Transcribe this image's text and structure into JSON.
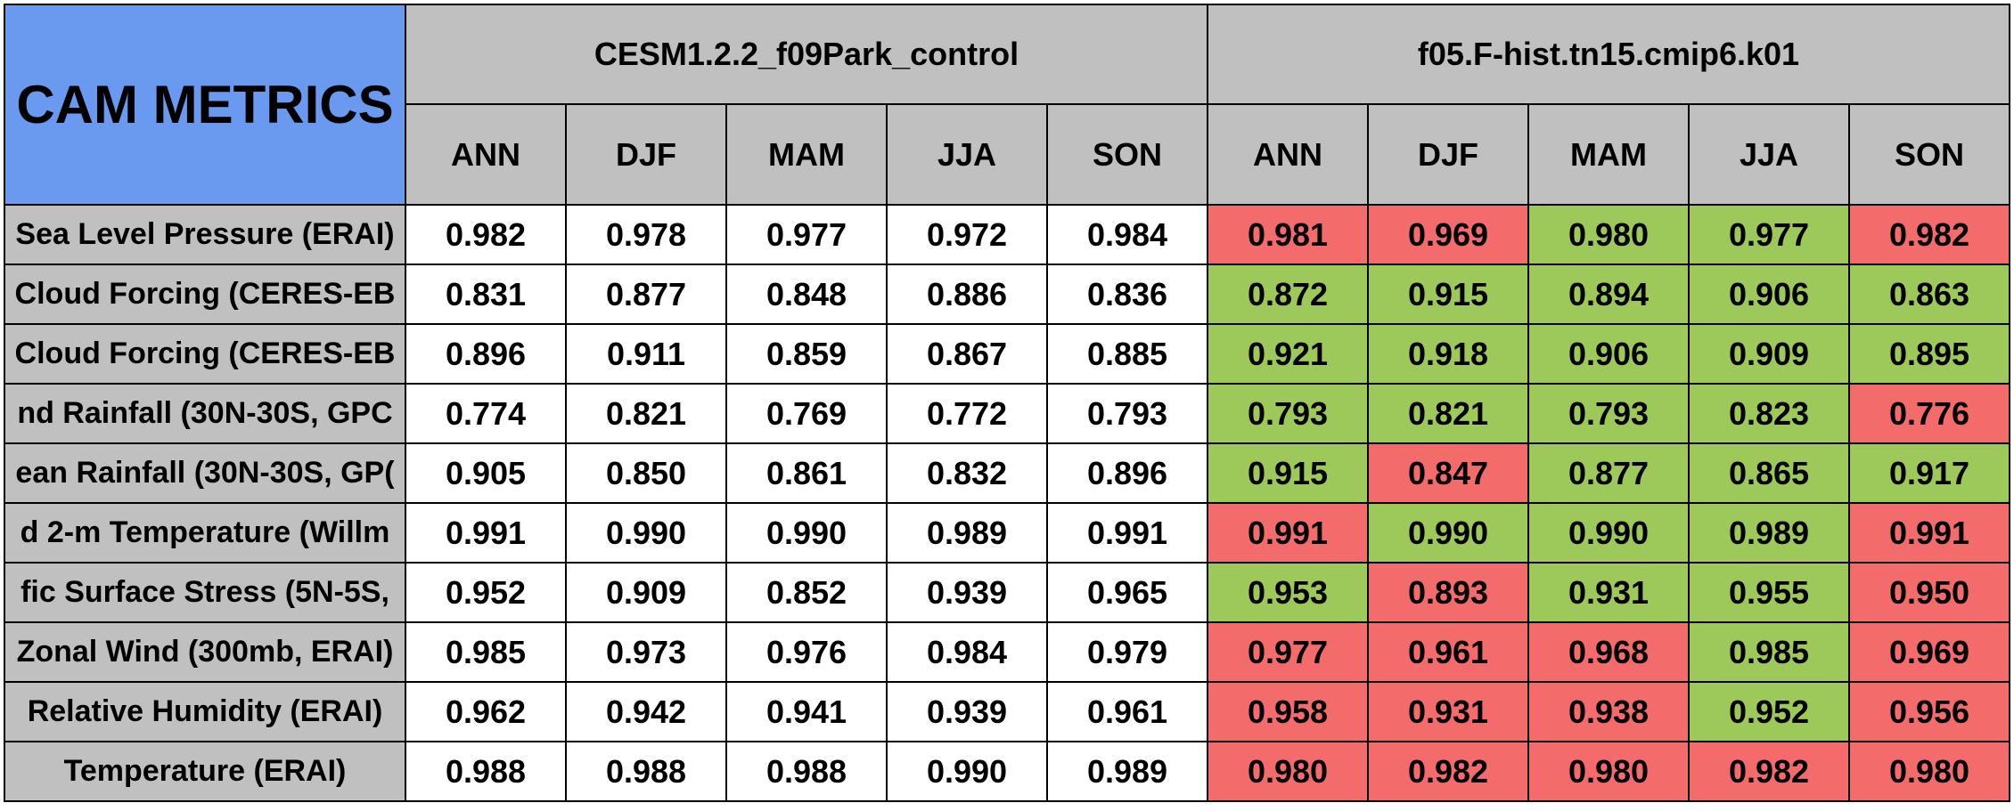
{
  "chart_data": {
    "type": "table",
    "title": "CAM METRICS",
    "models": [
      "CESM1.2.2_f09Park_control",
      "f05.F-hist.tn15.cmip6.k01"
    ],
    "seasons": [
      "ANN",
      "DJF",
      "MAM",
      "JJA",
      "SON"
    ],
    "row_labels": [
      "Sea Level Pressure (ERAI)",
      "Cloud Forcing (CERES-EB",
      "Cloud Forcing (CERES-EB",
      "nd Rainfall (30N-30S, GPC",
      "ean Rainfall (30N-30S, GP(",
      "d 2-m Temperature (Willm",
      "fic Surface Stress (5N-5S,",
      "Zonal Wind (300mb, ERAI)",
      "Relative Humidity (ERAI)",
      "Temperature (ERAI)"
    ],
    "rows": [
      [
        [
          "0.982",
          "0.978",
          "0.977",
          "0.972",
          "0.984"
        ],
        [
          "0.981",
          "0.969",
          "0.980",
          "0.977",
          "0.982"
        ]
      ],
      [
        [
          "0.831",
          "0.877",
          "0.848",
          "0.886",
          "0.836"
        ],
        [
          "0.872",
          "0.915",
          "0.894",
          "0.906",
          "0.863"
        ]
      ],
      [
        [
          "0.896",
          "0.911",
          "0.859",
          "0.867",
          "0.885"
        ],
        [
          "0.921",
          "0.918",
          "0.906",
          "0.909",
          "0.895"
        ]
      ],
      [
        [
          "0.774",
          "0.821",
          "0.769",
          "0.772",
          "0.793"
        ],
        [
          "0.793",
          "0.821",
          "0.793",
          "0.823",
          "0.776"
        ]
      ],
      [
        [
          "0.905",
          "0.850",
          "0.861",
          "0.832",
          "0.896"
        ],
        [
          "0.915",
          "0.847",
          "0.877",
          "0.865",
          "0.917"
        ]
      ],
      [
        [
          "0.991",
          "0.990",
          "0.990",
          "0.989",
          "0.991"
        ],
        [
          "0.991",
          "0.990",
          "0.990",
          "0.989",
          "0.991"
        ]
      ],
      [
        [
          "0.952",
          "0.909",
          "0.852",
          "0.939",
          "0.965"
        ],
        [
          "0.953",
          "0.893",
          "0.931",
          "0.955",
          "0.950"
        ]
      ],
      [
        [
          "0.985",
          "0.973",
          "0.976",
          "0.984",
          "0.979"
        ],
        [
          "0.977",
          "0.961",
          "0.968",
          "0.985",
          "0.969"
        ]
      ],
      [
        [
          "0.962",
          "0.942",
          "0.941",
          "0.939",
          "0.961"
        ],
        [
          "0.958",
          "0.931",
          "0.938",
          "0.952",
          "0.956"
        ]
      ],
      [
        [
          "0.988",
          "0.988",
          "0.988",
          "0.990",
          "0.989"
        ],
        [
          "0.980",
          "0.982",
          "0.980",
          "0.982",
          "0.980"
        ]
      ]
    ],
    "second_model_cell_status": [
      [
        "red",
        "red",
        "green",
        "green",
        "red"
      ],
      [
        "green",
        "green",
        "green",
        "green",
        "green"
      ],
      [
        "green",
        "green",
        "green",
        "green",
        "green"
      ],
      [
        "green",
        "green",
        "green",
        "green",
        "red"
      ],
      [
        "green",
        "red",
        "green",
        "green",
        "green"
      ],
      [
        "red",
        "green",
        "green",
        "green",
        "red"
      ],
      [
        "green",
        "red",
        "green",
        "green",
        "red"
      ],
      [
        "red",
        "red",
        "red",
        "green",
        "red"
      ],
      [
        "red",
        "red",
        "red",
        "green",
        "red"
      ],
      [
        "red",
        "red",
        "red",
        "red",
        "red"
      ]
    ],
    "colors": {
      "title_bg": "#6a9af0",
      "header_bg": "#c0c0c0",
      "better": "#9cc95a",
      "worse": "#f46b6b",
      "baseline": "#ffffff"
    }
  }
}
